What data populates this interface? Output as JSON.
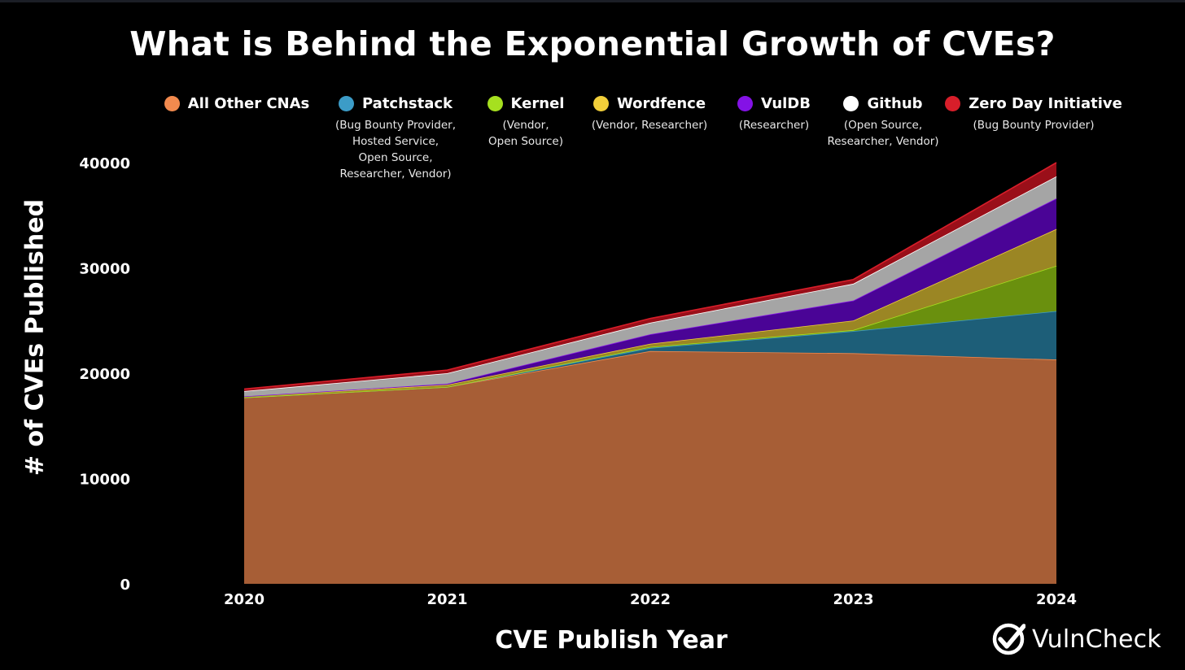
{
  "title": "What is Behind the Exponential Growth of CVEs?",
  "legend": [
    {
      "name": "All Other CNAs",
      "color": "#f28a4e",
      "sub": []
    },
    {
      "name": "Patchstack",
      "color": "#3c9cc7",
      "sub": [
        "(Bug Bounty Provider,",
        "Hosted Service,",
        "Open Source,",
        "Researcher, Vendor)"
      ]
    },
    {
      "name": "Kernel",
      "color": "#a6e01f",
      "sub": [
        "(Vendor,",
        "Open Source)"
      ]
    },
    {
      "name": "Wordfence",
      "color": "#f2cf3a",
      "sub": [
        "(Vendor, Researcher)"
      ]
    },
    {
      "name": "VulDB",
      "color": "#8412e6",
      "sub": [
        "(Researcher)"
      ]
    },
    {
      "name": "Github",
      "color": "#ffffff",
      "sub": [
        "(Open Source,",
        "Researcher, Vendor)"
      ]
    },
    {
      "name": "Zero Day Initiative",
      "color": "#d81e2a",
      "sub": [
        "(Bug Bounty Provider)"
      ]
    }
  ],
  "brand": {
    "name": "VulnCheck"
  },
  "chart_data": {
    "type": "area",
    "stacked": true,
    "title": "What is Behind the Exponential Growth of CVEs?",
    "xlabel": "CVE Publish Year",
    "ylabel": "# of CVEs Published",
    "x": [
      "2020",
      "2021",
      "2022",
      "2023",
      "2024"
    ],
    "ylim": [
      0,
      40000
    ],
    "yticks": [
      0,
      10000,
      20000,
      30000,
      40000
    ],
    "grid": false,
    "legend_position": "top",
    "series": [
      {
        "name": "All Other CNAs",
        "fill": "#a75e36",
        "line": "#f28a4e",
        "values": [
          17700,
          18700,
          22100,
          21900,
          21300
        ]
      },
      {
        "name": "Patchstack",
        "fill": "#1d5e78",
        "line": "#3c9cc7",
        "values": [
          0,
          0,
          300,
          2100,
          4600
        ]
      },
      {
        "name": "Kernel",
        "fill": "#6a900e",
        "line": "#a6e01f",
        "values": [
          0,
          0,
          100,
          100,
          4300
        ]
      },
      {
        "name": "Wordfence",
        "fill": "#9b8624",
        "line": "#f2cf3a",
        "values": [
          100,
          200,
          300,
          900,
          3500
        ]
      },
      {
        "name": "VulDB",
        "fill": "#4a0496",
        "line": "#8412e6",
        "values": [
          0,
          100,
          900,
          1900,
          2900
        ]
      },
      {
        "name": "Github",
        "fill": "#a5a5a5",
        "line": "#ffffff",
        "values": [
          500,
          1000,
          1100,
          1600,
          2100
        ]
      },
      {
        "name": "Zero Day Initiative",
        "fill": "#9a0f19",
        "line": "#d81e2a",
        "values": [
          200,
          300,
          400,
          400,
          1300
        ]
      }
    ]
  }
}
